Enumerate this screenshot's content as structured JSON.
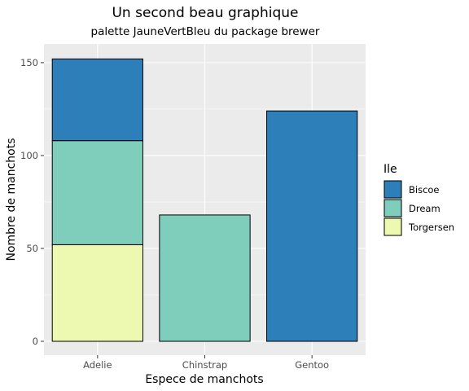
{
  "chart_data": {
    "type": "bar",
    "stacked": true,
    "title": "Un second beau graphique",
    "subtitle": "palette JauneVertBleu du package brewer",
    "xlabel": "Espece de manchots",
    "ylabel": "Nombre de manchots",
    "categories": [
      "Adelie",
      "Chinstrap",
      "Gentoo"
    ],
    "series": [
      {
        "name": "Torgersen",
        "color": "#edf8b1",
        "values": [
          52,
          0,
          0
        ]
      },
      {
        "name": "Dream",
        "color": "#7fcdbb",
        "values": [
          56,
          68,
          0
        ]
      },
      {
        "name": "Biscoe",
        "color": "#2c7fb8",
        "values": [
          44,
          0,
          124
        ]
      }
    ],
    "ylim": [
      0,
      158.5
    ],
    "yticks": [
      0,
      50,
      100,
      150
    ],
    "grid": true,
    "legend": {
      "title": "Ile",
      "placement": "right",
      "order": [
        "Biscoe",
        "Dream",
        "Torgersen"
      ]
    }
  }
}
